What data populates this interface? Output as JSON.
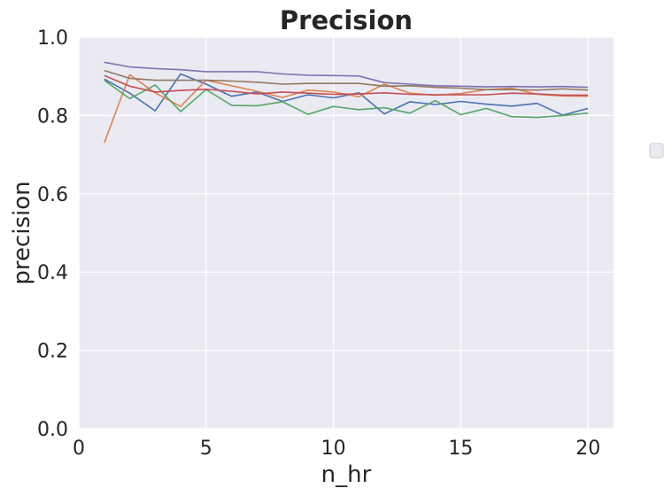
{
  "chart_data": {
    "type": "line",
    "title": "Precision",
    "xlabel": "n_hr",
    "ylabel": "precision",
    "xlim": [
      0,
      21
    ],
    "ylim": [
      0.0,
      1.0
    ],
    "xticks": [
      0,
      5,
      10,
      15,
      20
    ],
    "xtick_labels": [
      "0",
      "5",
      "10",
      "15",
      "20"
    ],
    "yticks": [
      0.0,
      0.2,
      0.4,
      0.6,
      0.8,
      1.0
    ],
    "ytick_labels": [
      "0.0",
      "0.2",
      "0.4",
      "0.6",
      "0.8",
      "1.0"
    ],
    "grid": true,
    "legend": "outside-right",
    "x": [
      1,
      2,
      3,
      4,
      5,
      6,
      7,
      8,
      9,
      10,
      11,
      12,
      13,
      14,
      15,
      16,
      17,
      18,
      19,
      20
    ],
    "series": [
      {
        "color": "#4c72b0",
        "values": [
          0.893,
          0.857,
          0.812,
          0.906,
          0.88,
          0.849,
          0.86,
          0.836,
          0.853,
          0.845,
          0.858,
          0.804,
          0.835,
          0.828,
          0.836,
          0.829,
          0.824,
          0.831,
          0.801,
          0.818
        ]
      },
      {
        "color": "#dd8452",
        "values": [
          0.73,
          0.904,
          0.858,
          0.823,
          0.89,
          0.876,
          0.862,
          0.846,
          0.865,
          0.86,
          0.848,
          0.88,
          0.857,
          0.852,
          0.856,
          0.866,
          0.87,
          0.854,
          0.85,
          0.849
        ]
      },
      {
        "color": "#55a868",
        "values": [
          0.89,
          0.843,
          0.878,
          0.81,
          0.866,
          0.826,
          0.825,
          0.835,
          0.803,
          0.823,
          0.815,
          0.82,
          0.806,
          0.838,
          0.802,
          0.818,
          0.797,
          0.795,
          0.8,
          0.806
        ]
      },
      {
        "color": "#c44e52",
        "values": [
          0.902,
          0.875,
          0.86,
          0.864,
          0.867,
          0.862,
          0.855,
          0.86,
          0.857,
          0.854,
          0.855,
          0.858,
          0.854,
          0.853,
          0.853,
          0.853,
          0.857,
          0.855,
          0.852,
          0.852
        ]
      },
      {
        "color": "#8172b3",
        "values": [
          0.936,
          0.924,
          0.92,
          0.917,
          0.912,
          0.912,
          0.912,
          0.906,
          0.903,
          0.902,
          0.901,
          0.884,
          0.88,
          0.876,
          0.875,
          0.873,
          0.874,
          0.873,
          0.874,
          0.872
        ]
      },
      {
        "color": "#937860",
        "values": [
          0.915,
          0.895,
          0.89,
          0.89,
          0.89,
          0.888,
          0.885,
          0.88,
          0.882,
          0.882,
          0.882,
          0.875,
          0.876,
          0.872,
          0.87,
          0.866,
          0.866,
          0.865,
          0.868,
          0.865
        ]
      }
    ]
  }
}
